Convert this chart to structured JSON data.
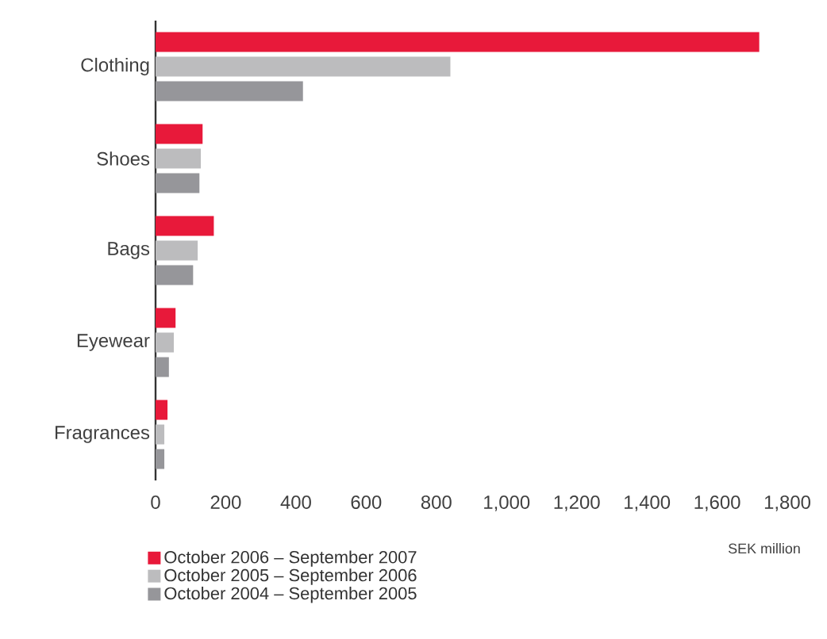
{
  "chart_data": {
    "type": "bar",
    "orientation": "horizontal",
    "xlabel": "SEK million",
    "categories": [
      "Clothing",
      "Shoes",
      "Bags",
      "Eyewear",
      "Fragrances"
    ],
    "series": [
      {
        "name": "October 2006 – September 2007",
        "color": "#e8193a",
        "values": [
          1720,
          134,
          166,
          57,
          34
        ]
      },
      {
        "name": "October 2005 – September 2006",
        "color": "#bcbcbe",
        "values": [
          840,
          129,
          120,
          52,
          25
        ]
      },
      {
        "name": "October 2004 – September 2005",
        "color": "#96969a",
        "values": [
          420,
          125,
          107,
          38,
          25
        ]
      }
    ],
    "xlim": [
      0,
      1800
    ],
    "xticks": [
      0,
      200,
      400,
      600,
      800,
      {
        "value": 1000,
        "label": "1,000"
      },
      {
        "value": 1200,
        "label": "1,200"
      },
      {
        "value": 1400,
        "label": "1,400"
      },
      {
        "value": 1600,
        "label": "1,600"
      },
      {
        "value": 1800,
        "label": "1,800"
      }
    ],
    "grid": false,
    "legend": "bottom left"
  }
}
